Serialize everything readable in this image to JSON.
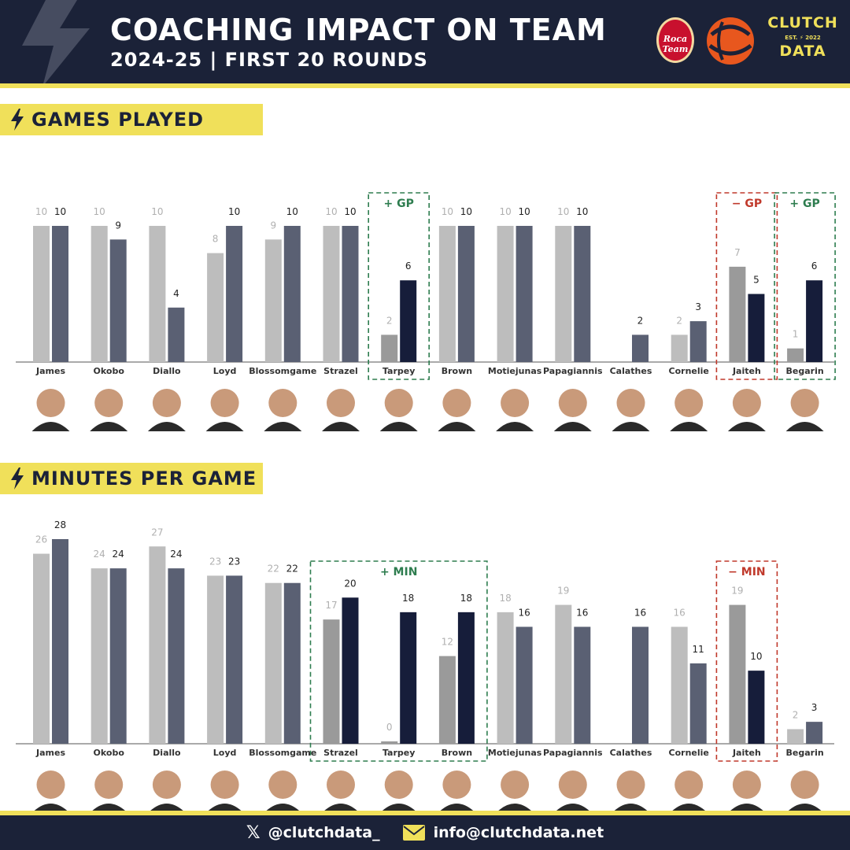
{
  "header": {
    "title": "COACHING IMPACT ON TEAM",
    "subtitle": "2024-25 | FIRST 20 ROUNDS",
    "team_logo_text": "Roca Team",
    "brand_top": "CLUTCH",
    "brand_est": "EST.",
    "brand_year": "2022",
    "brand_bottom": "DATA"
  },
  "colors": {
    "navy": "#1b2238",
    "yellow": "#f0e05a",
    "bar_light": "#bdbdbd",
    "bar_slate": "#5a6073",
    "bar_dark": "#161d3a",
    "highlight_green": "#2e7d4f",
    "highlight_red": "#c0392b"
  },
  "chart_data": [
    {
      "type": "bar",
      "title": "GAMES PLAYED",
      "categories": [
        "James",
        "Okobo",
        "Diallo",
        "Loyd",
        "Blossomgame",
        "Strazel",
        "Tarpey",
        "Brown",
        "Motiejunas",
        "Papagiannis",
        "Calathes",
        "Cornelie",
        "Jaiteh",
        "Begarin"
      ],
      "series": [
        {
          "values": [
            10,
            10,
            10,
            8,
            9,
            10,
            2,
            10,
            10,
            10,
            null,
            2,
            7,
            1
          ]
        },
        {
          "values": [
            10,
            9,
            4,
            10,
            10,
            10,
            6,
            10,
            10,
            10,
            2,
            3,
            5,
            6
          ]
        }
      ],
      "ylim": [
        0,
        10
      ],
      "highlights": [
        {
          "label": "+ GP",
          "players": [
            "Tarpey"
          ],
          "tone": "positive"
        },
        {
          "label": "− GP",
          "players": [
            "Jaiteh"
          ],
          "tone": "negative"
        },
        {
          "label": "+ GP",
          "players": [
            "Begarin"
          ],
          "tone": "positive"
        }
      ]
    },
    {
      "type": "bar",
      "title": "MINUTES PER GAME",
      "categories": [
        "James",
        "Okobo",
        "Diallo",
        "Loyd",
        "Blossomgame",
        "Strazel",
        "Tarpey",
        "Brown",
        "Motiejunas",
        "Papagiannis",
        "Calathes",
        "Cornelie",
        "Jaiteh",
        "Begarin"
      ],
      "series": [
        {
          "values": [
            26,
            24,
            27,
            23,
            22,
            17,
            0,
            12,
            18,
            19,
            null,
            16,
            19,
            2
          ]
        },
        {
          "values": [
            28,
            24,
            24,
            23,
            22,
            20,
            18,
            18,
            16,
            16,
            16,
            11,
            10,
            3
          ]
        }
      ],
      "ylim": [
        0,
        28
      ],
      "highlights": [
        {
          "label": "+ MIN",
          "players": [
            "Strazel",
            "Tarpey",
            "Brown"
          ],
          "tone": "positive"
        },
        {
          "label": "− MIN",
          "players": [
            "Jaiteh"
          ],
          "tone": "negative"
        }
      ]
    }
  ],
  "footer": {
    "twitter_icon": "x-logo-icon",
    "twitter_handle": "@clutchdata_",
    "email_icon": "envelope-icon",
    "email": "info@clutchdata.net"
  }
}
